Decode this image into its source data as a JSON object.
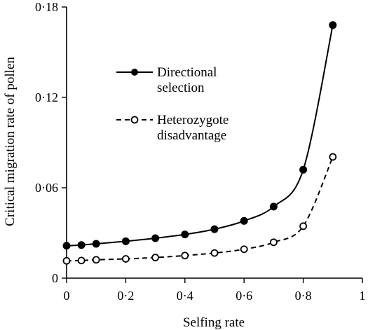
{
  "chart_data": {
    "type": "line",
    "xlabel": "Selfing rate",
    "ylabel": "Critical migration rate of pollen",
    "xlim": [
      0,
      1
    ],
    "ylim": [
      0,
      0.18
    ],
    "xticks": [
      0,
      0.2,
      0.4,
      0.6,
      0.8,
      1
    ],
    "xtick_labels": [
      "0",
      "0·2",
      "0·4",
      "0·6",
      "0·8",
      "1"
    ],
    "yticks": [
      0,
      0.06,
      0.12,
      0.18
    ],
    "ytick_labels": [
      "0",
      "0·06",
      "0·12",
      "0·18"
    ],
    "grid": false,
    "legend_position": "upper-left",
    "series": [
      {
        "name_lines": [
          "Directional",
          "selection"
        ],
        "line_style": "solid",
        "marker": "filled-circle",
        "color": "#000000",
        "x": [
          0,
          0.05,
          0.1,
          0.2,
          0.3,
          0.4,
          0.5,
          0.6,
          0.7,
          0.8,
          0.9
        ],
        "y": [
          0.0215,
          0.022,
          0.0228,
          0.0245,
          0.0265,
          0.029,
          0.0325,
          0.038,
          0.0475,
          0.072,
          0.168
        ]
      },
      {
        "name_lines": [
          "Heterozygote",
          "disadvantage"
        ],
        "line_style": "dashed",
        "marker": "open-circle",
        "color": "#000000",
        "x": [
          0,
          0.05,
          0.1,
          0.2,
          0.3,
          0.4,
          0.5,
          0.6,
          0.7,
          0.8,
          0.9
        ],
        "y": [
          0.0115,
          0.0117,
          0.0122,
          0.0128,
          0.0137,
          0.015,
          0.0167,
          0.0192,
          0.0238,
          0.0345,
          0.0805
        ]
      }
    ]
  }
}
